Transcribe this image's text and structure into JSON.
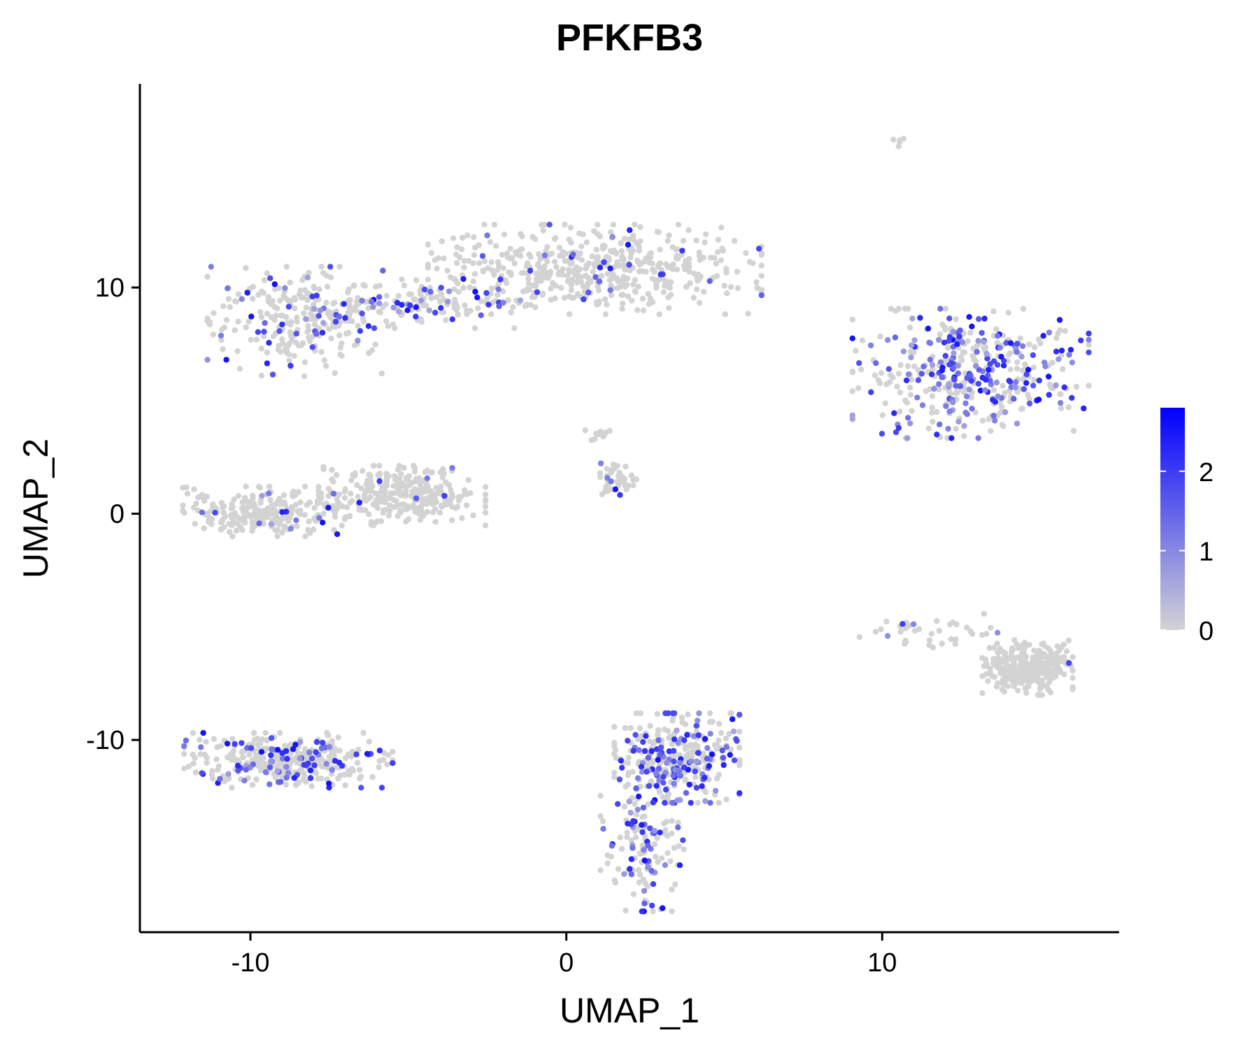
{
  "chart_data": {
    "type": "scatter",
    "title": "PFKFB3",
    "xlabel": "UMAP_1",
    "ylabel": "UMAP_2",
    "xlim": [
      -13.5,
      17.5
    ],
    "ylim": [
      -18.5,
      19
    ],
    "x_ticks": [
      -10,
      0,
      10
    ],
    "y_ticks": [
      -10,
      0,
      10
    ],
    "x_tick_labels": [
      "-10",
      "0",
      "10"
    ],
    "y_tick_labels": [
      "-10",
      "0",
      "10"
    ],
    "grid": false,
    "colorbar": {
      "min": 0,
      "max": 2.8,
      "ticks": [
        0,
        1,
        2
      ],
      "tick_labels": [
        "0",
        "1",
        "2"
      ],
      "low_color": "#d3d3d3",
      "high_color": "#0000ff",
      "position": "right"
    },
    "point_color_low": "#d3d3d3",
    "point_color_high": "#0000ff",
    "clusters": [
      {
        "name": "top-left-arm",
        "cx": -8.5,
        "cy": 8.5,
        "sx": 1.3,
        "sy": 1.1,
        "n": 260,
        "expr_rate": 0.14
      },
      {
        "name": "top-bridge",
        "cx": -4.5,
        "cy": 9.3,
        "sx": 1.6,
        "sy": 0.5,
        "n": 130,
        "expr_rate": 0.3
      },
      {
        "name": "top-center-mass",
        "cx": 0.9,
        "cy": 10.8,
        "sx": 2.4,
        "sy": 0.9,
        "n": 520,
        "expr_rate": 0.06
      },
      {
        "name": "top-tip",
        "cx": 10.5,
        "cy": 16.5,
        "sx": 0.12,
        "sy": 0.12,
        "n": 6,
        "expr_rate": 0.0
      },
      {
        "name": "right-ring",
        "cx": 12.8,
        "cy": 6.2,
        "sx": 1.7,
        "sy": 1.3,
        "n": 420,
        "expr_rate": 0.45
      },
      {
        "name": "middle-left-oval",
        "cx": -9.5,
        "cy": 0.1,
        "sx": 1.2,
        "sy": 0.5,
        "n": 240,
        "expr_rate": 0.05
      },
      {
        "name": "middle-oval",
        "cx": -5.2,
        "cy": 0.8,
        "sx": 1.2,
        "sy": 0.6,
        "n": 300,
        "expr_rate": 0.02
      },
      {
        "name": "middle-small",
        "cx": 1.5,
        "cy": 1.5,
        "sx": 0.35,
        "sy": 0.35,
        "n": 45,
        "expr_rate": 0.2
      },
      {
        "name": "middle-small-top",
        "cx": 1.0,
        "cy": 3.5,
        "sx": 0.2,
        "sy": 0.15,
        "n": 12,
        "expr_rate": 0.0
      },
      {
        "name": "bottom-left-oval",
        "cx": -8.8,
        "cy": -10.9,
        "sx": 1.5,
        "sy": 0.55,
        "n": 360,
        "expr_rate": 0.22
      },
      {
        "name": "bottom-comet-head",
        "cx": 3.5,
        "cy": -10.8,
        "sx": 0.9,
        "sy": 0.9,
        "n": 330,
        "expr_rate": 0.38
      },
      {
        "name": "bottom-comet-tail",
        "cx": 2.4,
        "cy": -14.5,
        "sx": 0.6,
        "sy": 1.4,
        "n": 140,
        "expr_rate": 0.35
      },
      {
        "name": "right-bottom-blob",
        "cx": 14.6,
        "cy": -6.8,
        "sx": 0.65,
        "sy": 0.55,
        "n": 320,
        "expr_rate": 0.01
      },
      {
        "name": "right-bottom-trail",
        "cx": 11.5,
        "cy": -5.3,
        "sx": 1.2,
        "sy": 0.4,
        "n": 40,
        "expr_rate": 0.04
      }
    ]
  }
}
